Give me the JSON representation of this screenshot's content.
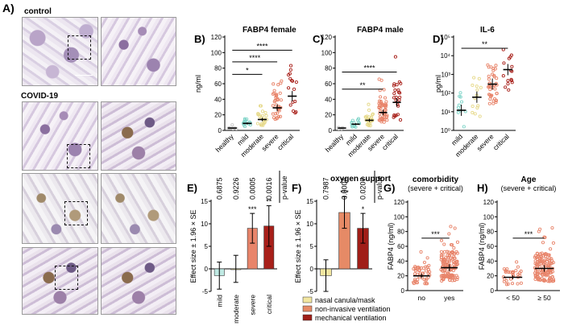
{
  "panelA": {
    "letter": "A)",
    "control_label": "control",
    "covid_label": "COVID-19"
  },
  "colors": {
    "healthy": "#c9c9c9",
    "mild": "#7fd4c8",
    "moderate": "#e6d98a",
    "severe": "#e8846a",
    "critical": "#a8201a",
    "nasal": "#f2e6a0",
    "noninvasive": "#e68a66",
    "mechanical": "#a01e18",
    "mild_bar": "#bfe9e3"
  },
  "chart_data": [
    {
      "id": "B",
      "letter": "B)",
      "type": "scatter",
      "title": "FABP4 female",
      "ylabel": "ng/ml",
      "ylim": [
        0,
        120
      ],
      "yticks": [
        0,
        20,
        40,
        60,
        80,
        100,
        120
      ],
      "categories": [
        "healthy",
        "mild",
        "moderate",
        "severe",
        "critical"
      ],
      "means": [
        3,
        9,
        14,
        29,
        44
      ],
      "significance": [
        {
          "label": "*",
          "from": 0,
          "to": 2,
          "y": 72
        },
        {
          "label": "****",
          "from": 0,
          "to": 3,
          "y": 88
        },
        {
          "label": "****",
          "from": 0,
          "to": 4,
          "y": 103
        }
      ]
    },
    {
      "id": "C",
      "letter": "C)",
      "type": "scatter",
      "title": "FABP4 male",
      "ylabel": "",
      "ylim": [
        0,
        120
      ],
      "yticks": [
        0,
        20,
        40,
        60,
        80,
        100,
        120
      ],
      "categories": [
        "healthy",
        "mild",
        "moderate",
        "severe",
        "critical"
      ],
      "means": [
        3,
        8,
        13,
        23,
        36
      ],
      "significance": [
        {
          "label": "**",
          "from": 0,
          "to": 3,
          "y": 53
        },
        {
          "label": "****",
          "from": 0,
          "to": 4,
          "y": 75
        }
      ]
    },
    {
      "id": "D",
      "letter": "D)",
      "type": "scatter",
      "title": "IL-6",
      "ylabel": "pg/ml",
      "yscale": "log",
      "ylim": [
        1,
        100000
      ],
      "ytick_labels": [
        "10⁰",
        "10¹",
        "10²",
        "10³",
        "10⁴",
        "10⁵"
      ],
      "categories": [
        "mild",
        "moderate",
        "severe",
        "critical"
      ],
      "means": [
        12,
        60,
        300,
        1800
      ],
      "significance": [
        {
          "label": "**",
          "from": 0,
          "to": 3,
          "y": 25000
        }
      ]
    },
    {
      "id": "E",
      "letter": "E)",
      "type": "bar",
      "ylabel": "Effect size ± 1.96 × SE",
      "ylim": [
        -5,
        15
      ],
      "yticks": [
        -5,
        0,
        5,
        10,
        15
      ],
      "categories": [
        "mild",
        "moderate",
        "severe",
        "critical"
      ],
      "values": [
        -1.5,
        0,
        9,
        9.5
      ],
      "errors": [
        3,
        3,
        3.3,
        4.5
      ],
      "stars": [
        "",
        "",
        "***",
        "**"
      ],
      "pvalues": [
        "0.6875",
        "0.9226",
        "0.0005",
        "0.0016"
      ],
      "pvalue_label": "p-value"
    },
    {
      "id": "F",
      "letter": "F)",
      "type": "bar",
      "title": "oxygen support",
      "ylabel": "Effect size ± 1.96 × SE",
      "ylim": [
        -5,
        15
      ],
      "yticks": [
        -5,
        0,
        5,
        10,
        15
      ],
      "categories": [
        "nasal canula/mask",
        "non-invasive ventilation",
        "mechanical ventilation"
      ],
      "values": [
        -1.5,
        12.5,
        9
      ],
      "errors": [
        3.5,
        3.5,
        3.3
      ],
      "stars": [
        "",
        "***",
        "*"
      ],
      "pvalues": [
        "0.7987",
        "0.0004",
        "0.0207"
      ],
      "pvalue_label": "p-value",
      "legend": [
        "nasal canula/mask",
        "non-invasive ventilation",
        "mechanical ventilation"
      ]
    },
    {
      "id": "G",
      "letter": "G)",
      "type": "scatter",
      "title": "comorbidity",
      "subtitle": "(severe + critical)",
      "ylabel": "FABP4 (ng/ml)",
      "ylim": [
        0,
        120
      ],
      "yticks": [
        0,
        20,
        40,
        60,
        80,
        100,
        120
      ],
      "categories": [
        "no",
        "yes"
      ],
      "means": [
        20,
        31
      ],
      "significance": [
        {
          "label": "***",
          "from": 0,
          "to": 1,
          "y": 71
        }
      ]
    },
    {
      "id": "H",
      "letter": "H)",
      "type": "scatter",
      "title": "Age",
      "subtitle": "(severe + critical)",
      "ylabel": "FABP4 (ng/ml)",
      "ylim": [
        0,
        120
      ],
      "yticks": [
        0,
        20,
        40,
        60,
        80,
        100,
        120
      ],
      "categories": [
        "< 50",
        "≥ 50"
      ],
      "means": [
        18,
        30
      ],
      "significance": [
        {
          "label": "***",
          "from": 0,
          "to": 1,
          "y": 71
        }
      ]
    }
  ]
}
